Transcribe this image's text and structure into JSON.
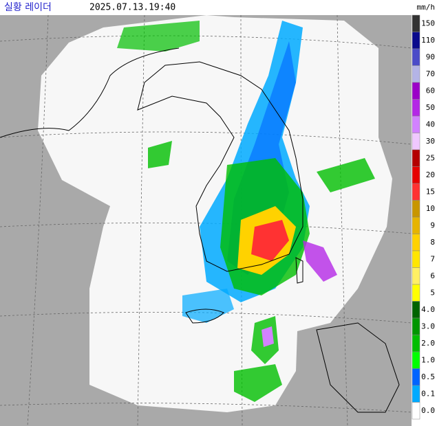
{
  "header": {
    "title": "실황 레이더",
    "timestamp": "2025.07.13.19:40"
  },
  "legend": {
    "unit": "mm/h",
    "items": [
      {
        "label": "150",
        "color": "#333333"
      },
      {
        "label": "110",
        "color": "#0a0a8c"
      },
      {
        "label": "90",
        "color": "#4b4bc8"
      },
      {
        "label": "70",
        "color": "#b4b4e6"
      },
      {
        "label": "60",
        "color": "#9b00c8"
      },
      {
        "label": "50",
        "color": "#b428e6"
      },
      {
        "label": "40",
        "color": "#d282ff"
      },
      {
        "label": "30",
        "color": "#f0c8ff"
      },
      {
        "label": "25",
        "color": "#b40000"
      },
      {
        "label": "20",
        "color": "#e60000"
      },
      {
        "label": "15",
        "color": "#ff3232"
      },
      {
        "label": "10",
        "color": "#c89600"
      },
      {
        "label": "9",
        "color": "#e6b400"
      },
      {
        "label": "8",
        "color": "#ffd200"
      },
      {
        "label": "7",
        "color": "#ffe600"
      },
      {
        "label": "6",
        "color": "#fff064"
      },
      {
        "label": "5",
        "color": "#ffff00"
      },
      {
        "label": "4.0",
        "color": "#006400"
      },
      {
        "label": "3.0",
        "color": "#009600"
      },
      {
        "label": "2.0",
        "color": "#00be00"
      },
      {
        "label": "1.0",
        "color": "#00ff00"
      },
      {
        "label": "0.5",
        "color": "#0064ff"
      },
      {
        "label": "0.1",
        "color": "#00aaff"
      },
      {
        "label": "0.0",
        "color": "#ffffff"
      }
    ]
  }
}
